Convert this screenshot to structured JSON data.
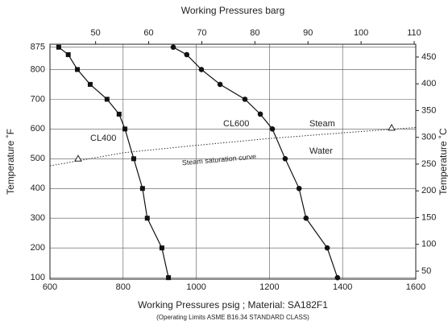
{
  "chart_data": {
    "type": "line",
    "title": "Working Pressures barg",
    "x_label": "Working Pressures psig ; Material: SA182F1",
    "subtitle": "(Operating Limits ASME B16.34 STANDARD CLASS)",
    "y_label": "Temperature ˚F",
    "y2_label": "Temperature ˚C",
    "xlim": [
      600,
      1600
    ],
    "xticks": [
      600,
      800,
      1000,
      1200,
      1400,
      1600
    ],
    "x2lim": [
      41.4,
      110.3
    ],
    "x2ticks": [
      50,
      60,
      70,
      80,
      90,
      100,
      110
    ],
    "ylim": [
      95,
      885
    ],
    "yticks": [
      100,
      200,
      300,
      400,
      500,
      600,
      700,
      800,
      875
    ],
    "y2lim": [
      35,
      473.9
    ],
    "y2ticks": [
      50,
      100,
      150,
      200,
      250,
      300,
      350,
      400,
      450
    ],
    "grid": true,
    "series": [
      {
        "name": "CL400",
        "color": "#111111",
        "marker": "square",
        "x": [
          924,
          906,
          866,
          853,
          829,
          805,
          789,
          756,
          710,
          675,
          650,
          624
        ],
        "y": [
          100,
          200,
          300,
          400,
          500,
          600,
          650,
          700,
          750,
          800,
          850,
          875
        ]
      },
      {
        "name": "CL600",
        "color": "#111111",
        "marker": "circle",
        "x": [
          1386,
          1358,
          1300,
          1281,
          1243,
          1208,
          1175,
          1133,
          1065,
          1014,
          974,
          937
        ],
        "y": [
          100,
          200,
          300,
          400,
          500,
          600,
          650,
          700,
          750,
          800,
          850,
          875
        ]
      },
      {
        "name": "Steam saturation curve",
        "color": "#333333",
        "marker": "none",
        "dashed": true,
        "x": [
          600,
          800,
          1000,
          1200,
          1400,
          1600
        ],
        "y": [
          476,
          520,
          545,
          568,
          587,
          605
        ]
      }
    ],
    "markers": {
      "shape": "triangle",
      "x": [
        677,
        1534
      ],
      "y": [
        500,
        604
      ]
    },
    "annotations": [
      "Steam",
      "Water"
    ]
  }
}
